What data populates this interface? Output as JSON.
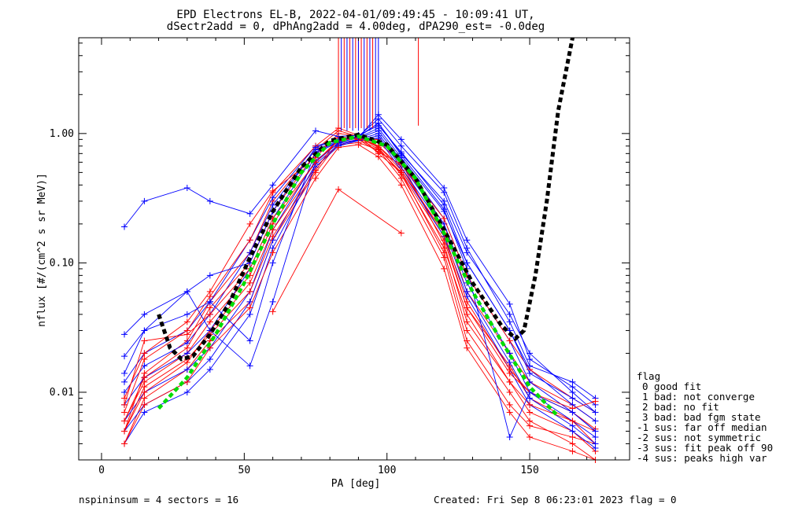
{
  "chart_data": {
    "type": "line",
    "title_line1": "EPD Electrons EL-B, 2022-04-01/09:49:45 - 10:09:41 UT,",
    "title_line2": "dSectr2add = 0, dPhAng2add = 4.00deg, dPA290_est=  -0.0deg",
    "xlabel": "PA [deg]",
    "ylabel": "nflux [#/(cm^2 s sr MeV)]",
    "x_scale": "linear",
    "y_scale": "log",
    "xlim": [
      -8,
      185
    ],
    "ylim": [
      0.003,
      5.5
    ],
    "x_ticks": [
      0,
      50,
      100,
      150
    ],
    "x_tick_labels": [
      "0",
      "50",
      "100",
      "150"
    ],
    "y_ticks": [
      0.01,
      0.1,
      1.0
    ],
    "y_tick_labels": [
      "0.01",
      "0.10",
      "1.00"
    ],
    "grid": false,
    "legend_position": "right",
    "legend": {
      "title": "flag",
      "entries": [
        "0 good fit",
        "1 bad: not converge",
        "2 bad: no fit",
        "3 bad: bad fgm state",
        "-1 sus: far off median",
        "-2 sus: not symmetric",
        "-3 sus: fit peak off 90",
        "-4 sus: peaks high var"
      ]
    },
    "footer_left": "nspininsum =  4  sectors = 16",
    "footer_right": "Created: Fri Sep  8 06:23:01 2023   flag = 0",
    "colors": {
      "series_a": "#ff0000",
      "series_b": "#0000ff",
      "median_fit": "#00dd00",
      "full_fit": "#000000"
    },
    "pa_bins": [
      8,
      15,
      30,
      38,
      52,
      60,
      75,
      83,
      90,
      97,
      105,
      120,
      128,
      143,
      150,
      165,
      173
    ],
    "median_fit": {
      "style": "dashed",
      "x": [
        20,
        30,
        40,
        50,
        60,
        70,
        80,
        90,
        100,
        110,
        120,
        130,
        140,
        150,
        160
      ],
      "y": [
        0.0075,
        0.013,
        0.028,
        0.07,
        0.2,
        0.5,
        0.85,
        0.95,
        0.8,
        0.45,
        0.17,
        0.06,
        0.025,
        0.011,
        0.0065
      ]
    },
    "full_fit": {
      "style": "dashed",
      "x": [
        20,
        24,
        28,
        32,
        38,
        45,
        52,
        60,
        70,
        80,
        90,
        100,
        110,
        120,
        130,
        140,
        145,
        148,
        152,
        156,
        160,
        165
      ],
      "y": [
        0.04,
        0.022,
        0.018,
        0.019,
        0.028,
        0.05,
        0.11,
        0.25,
        0.55,
        0.88,
        0.98,
        0.82,
        0.45,
        0.18,
        0.07,
        0.033,
        0.026,
        0.03,
        0.08,
        0.3,
        1.5,
        5.5
      ]
    },
    "series_a_samples": [
      [
        0.005,
        0.014,
        0.025,
        0.05,
        0.12,
        0.3,
        0.75,
        1.05,
        0.95,
        0.85,
        0.6,
        0.2,
        0.06,
        0.02,
        0.012,
        0.008,
        0.006
      ],
      [
        0.006,
        0.012,
        0.02,
        0.035,
        0.08,
        0.2,
        0.6,
        0.9,
        0.92,
        0.8,
        0.55,
        0.16,
        0.045,
        0.016,
        0.009,
        0.006,
        0.004
      ],
      [
        0.004,
        0.009,
        0.015,
        0.025,
        0.05,
        0.15,
        0.5,
        0.85,
        0.88,
        0.9,
        0.6,
        0.14,
        0.035,
        0.012,
        0.007,
        0.005,
        0.0035
      ],
      [
        0.007,
        0.018,
        0.03,
        0.055,
        0.15,
        0.35,
        0.8,
        1.1,
        0.97,
        0.7,
        0.5,
        0.12,
        0.03,
        0.01,
        0.006,
        0.004,
        0.003
      ],
      [
        0.005,
        0.01,
        0.017,
        0.03,
        0.07,
        0.18,
        0.55,
        0.82,
        0.85,
        0.75,
        0.45,
        0.11,
        0.025,
        0.008,
        0.0055,
        0.0045,
        0.004
      ],
      [
        0.006,
        0.013,
        0.022,
        0.045,
        0.1,
        0.25,
        0.7,
        0.95,
        0.9,
        0.72,
        0.58,
        0.22,
        0.08,
        0.025,
        0.015,
        0.009,
        0.007
      ],
      [
        0.009,
        0.02,
        0.035,
        0.06,
        0.2,
        0.36,
        0.65,
        1.0,
        0.96,
        0.8,
        0.52,
        0.17,
        0.05,
        0.015,
        0.01,
        0.007,
        0.0052
      ],
      [
        0.004,
        0.008,
        0.012,
        0.022,
        0.045,
        0.12,
        0.45,
        0.78,
        0.82,
        0.66,
        0.4,
        0.09,
        0.022,
        0.007,
        0.0045,
        0.0035,
        0.003
      ],
      [
        0.008,
        0.025,
        0.028,
        0.04,
        0.09,
        0.22,
        0.6,
        0.88,
        0.93,
        0.78,
        0.48,
        0.13,
        0.04,
        0.012,
        0.008,
        0.006,
        0.005
      ],
      [
        0.005,
        0.011,
        0.018,
        0.028,
        0.06,
        0.16,
        0.52,
        0.92,
        0.9,
        0.76,
        0.5,
        0.15,
        0.045,
        0.014,
        0.01,
        0.0075,
        0.0085
      ]
    ],
    "series_b_samples": [
      [
        0.012,
        0.02,
        0.03,
        0.05,
        0.15,
        0.32,
        0.8,
        0.9,
        0.95,
        1.2,
        0.7,
        0.3,
        0.12,
        0.04,
        0.02,
        0.01,
        0.007
      ],
      [
        0.01,
        0.016,
        0.024,
        0.04,
        0.12,
        0.28,
        0.75,
        0.88,
        0.93,
        1.1,
        0.65,
        0.25,
        0.1,
        0.03,
        0.015,
        0.008,
        0.006
      ],
      [
        0.008,
        0.013,
        0.02,
        0.03,
        0.09,
        0.22,
        0.7,
        0.86,
        0.92,
        1.05,
        0.62,
        0.22,
        0.08,
        0.025,
        0.012,
        0.007,
        0.005
      ],
      [
        0.006,
        0.01,
        0.015,
        0.022,
        0.06,
        0.18,
        0.62,
        0.84,
        0.9,
        1.0,
        0.58,
        0.2,
        0.07,
        0.02,
        0.01,
        0.006,
        0.0045
      ],
      [
        0.005,
        0.008,
        0.012,
        0.018,
        0.05,
        0.15,
        0.58,
        0.82,
        0.89,
        0.96,
        0.55,
        0.18,
        0.06,
        0.017,
        0.009,
        0.0055,
        0.004
      ],
      [
        0.004,
        0.007,
        0.01,
        0.015,
        0.04,
        0.13,
        0.55,
        0.8,
        0.88,
        0.92,
        0.52,
        0.16,
        0.055,
        0.015,
        0.008,
        0.005,
        0.0037
      ],
      [
        0.019,
        0.03,
        0.06,
        0.03,
        0.016,
        0.05,
        0.6,
        0.85,
        0.93,
        1.4,
        0.9,
        0.38,
        0.15,
        0.048,
        0.018,
        0.011,
        0.008
      ],
      [
        0.014,
        0.03,
        0.04,
        0.05,
        0.025,
        0.1,
        0.72,
        0.87,
        0.95,
        1.3,
        0.8,
        0.35,
        0.13,
        0.035,
        0.016,
        0.012,
        0.009
      ],
      [
        0.19,
        0.3,
        0.38,
        0.3,
        0.24,
        0.4,
        1.05,
        0.95,
        0.97,
        1.15,
        0.72,
        0.28,
        0.1,
        0.03,
        0.014,
        0.009,
        0.007
      ],
      [
        0.028,
        0.04,
        0.06,
        0.08,
        0.1,
        0.25,
        0.78,
        0.9,
        0.94,
        1.2,
        0.68,
        0.26,
        0.09,
        0.0045,
        0.01,
        0.007,
        0.005
      ]
    ],
    "outlier_red": {
      "x": [
        60,
        83,
        105
      ],
      "y": [
        0.042,
        0.37,
        0.17
      ]
    },
    "peak_spikes_red_x": [
      83,
      85,
      87,
      89,
      90,
      91,
      93,
      95,
      111
    ],
    "peak_spikes_blue_x": [
      84,
      86,
      88,
      90,
      92,
      94,
      96,
      97
    ]
  }
}
